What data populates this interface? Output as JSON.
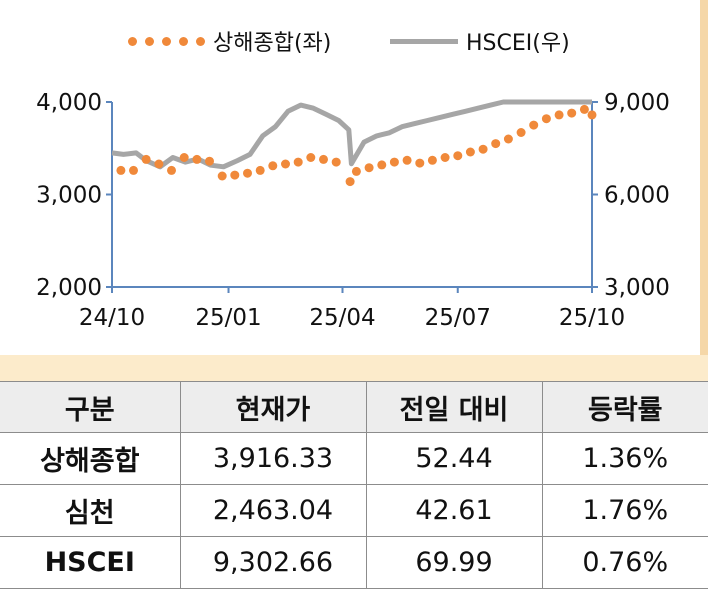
{
  "legend": {
    "series1": "상해종합(좌)",
    "series2": "HSCEI(우)"
  },
  "colors": {
    "series1": "#F0893A",
    "series2": "#A6A6A6",
    "axis": "#5B86BD",
    "band": "#FCEBCB",
    "header_bg": "#EDEDED"
  },
  "chart_data": {
    "type": "line",
    "x_ticks": [
      "24/10",
      "25/01",
      "25/04",
      "25/07",
      "25/10"
    ],
    "left_axis": {
      "ticks": [
        "4,000",
        "3,000",
        "2,000"
      ],
      "ylim": [
        2000,
        4000
      ]
    },
    "right_axis": {
      "ticks": [
        "9,000",
        "6,000",
        "3,000"
      ],
      "ylim": [
        3000,
        9000
      ]
    },
    "series": [
      {
        "name": "상해종합(좌)",
        "axis": "left",
        "style": "dotted",
        "dates": [
          "2024-10-08",
          "2024-10-18",
          "2024-10-28",
          "2024-11-07",
          "2024-11-17",
          "2024-11-27",
          "2024-12-07",
          "2024-12-17",
          "2024-12-27",
          "2025-01-06",
          "2025-01-16",
          "2025-01-26",
          "2025-02-05",
          "2025-02-15",
          "2025-02-25",
          "2025-03-07",
          "2025-03-17",
          "2025-03-27",
          "2025-04-07",
          "2025-04-12",
          "2025-04-22",
          "2025-05-02",
          "2025-05-12",
          "2025-05-22",
          "2025-06-01",
          "2025-06-11",
          "2025-06-21",
          "2025-07-01",
          "2025-07-11",
          "2025-07-21",
          "2025-07-31",
          "2025-08-10",
          "2025-08-20",
          "2025-08-30",
          "2025-09-09",
          "2025-09-19",
          "2025-09-29",
          "2025-10-09",
          "2025-10-15"
        ],
        "values": [
          3260,
          3260,
          3380,
          3330,
          3260,
          3400,
          3380,
          3360,
          3200,
          3210,
          3230,
          3260,
          3310,
          3330,
          3350,
          3400,
          3380,
          3350,
          3140,
          3250,
          3290,
          3320,
          3350,
          3370,
          3340,
          3370,
          3400,
          3420,
          3460,
          3490,
          3550,
          3600,
          3670,
          3750,
          3820,
          3860,
          3880,
          3920,
          3860
        ]
      },
      {
        "name": "HSCEI(우)",
        "axis": "right",
        "style": "solid",
        "dates": [
          "2024-10-01",
          "2024-10-10",
          "2024-10-20",
          "2024-10-28",
          "2024-11-08",
          "2024-11-18",
          "2024-11-28",
          "2024-12-08",
          "2024-12-18",
          "2024-12-28",
          "2025-01-08",
          "2025-01-18",
          "2025-01-28",
          "2025-02-07",
          "2025-02-17",
          "2025-02-27",
          "2025-03-09",
          "2025-03-19",
          "2025-03-29",
          "2025-04-06",
          "2025-04-08",
          "2025-04-18",
          "2025-04-28",
          "2025-05-08",
          "2025-05-18",
          "2025-05-28",
          "2025-06-07",
          "2025-06-17",
          "2025-06-27",
          "2025-07-07",
          "2025-07-17",
          "2025-07-27",
          "2025-08-06",
          "2025-08-16",
          "2025-08-26",
          "2025-09-05",
          "2025-09-15",
          "2025-09-25",
          "2025-10-05",
          "2025-10-15"
        ],
        "values": [
          7350,
          7300,
          7350,
          7100,
          6900,
          7200,
          7050,
          7150,
          6950,
          6900,
          7100,
          7300,
          7900,
          8200,
          8700,
          8900,
          8800,
          8600,
          8400,
          8100,
          7000,
          7700,
          7900,
          8000,
          8200,
          8300,
          8400,
          8500,
          8600,
          8700,
          8800,
          8900,
          9000,
          9050,
          9100,
          9150,
          9200,
          9250,
          9300,
          9300
        ]
      }
    ]
  },
  "table": {
    "headers": [
      "구분",
      "현재가",
      "전일 대비",
      "등락률"
    ],
    "rows": [
      [
        "상해종합",
        "3,916.33",
        "52.44",
        "1.36%"
      ],
      [
        "심천",
        "2,463.04",
        "42.61",
        "1.76%"
      ],
      [
        "HSCEI",
        "9,302.66",
        "69.99",
        "0.76%"
      ]
    ]
  }
}
